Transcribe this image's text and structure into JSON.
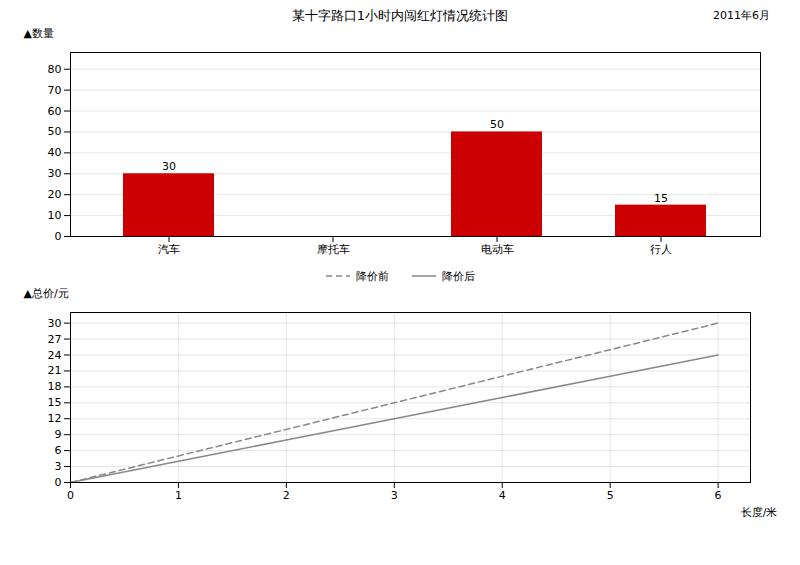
{
  "chart_data": [
    {
      "type": "bar",
      "title": "某十字路口1小时内闯红灯情况统计图",
      "annotations": [
        "2011年6月"
      ],
      "categories": [
        "汽车",
        "摩托车",
        "电动车",
        "行人"
      ],
      "values": [
        30,
        0,
        50,
        15
      ],
      "value_labels": [
        "30",
        null,
        "50",
        "15"
      ],
      "data_labels": true,
      "color": "#cc0000",
      "ylabel": "▲数量",
      "ylim": [
        0,
        88
      ],
      "yticks": [
        0,
        10,
        20,
        30,
        40,
        50,
        60,
        70,
        80
      ],
      "grid": "y"
    },
    {
      "type": "line",
      "x": [
        0,
        1,
        2,
        3,
        4,
        5,
        6
      ],
      "series": [
        {
          "name": "降价前",
          "color": "#888888",
          "line_style": "dashed",
          "values": [
            0,
            5,
            10,
            15,
            20,
            25,
            30
          ]
        },
        {
          "name": "降价后",
          "color": "#888888",
          "line_style": "solid",
          "values": [
            0,
            4,
            8,
            12,
            16,
            20,
            24
          ]
        }
      ],
      "xlabel": "长度/米",
      "ylabel": "▲总价/元",
      "xlim": [
        0,
        6.3
      ],
      "xticks": [
        0,
        1,
        2,
        3,
        4,
        5,
        6
      ],
      "ylim": [
        0,
        32
      ],
      "yticks": [
        0,
        3,
        6,
        9,
        12,
        15,
        18,
        21,
        24,
        27,
        30
      ],
      "grid": true,
      "legend": "top"
    }
  ]
}
